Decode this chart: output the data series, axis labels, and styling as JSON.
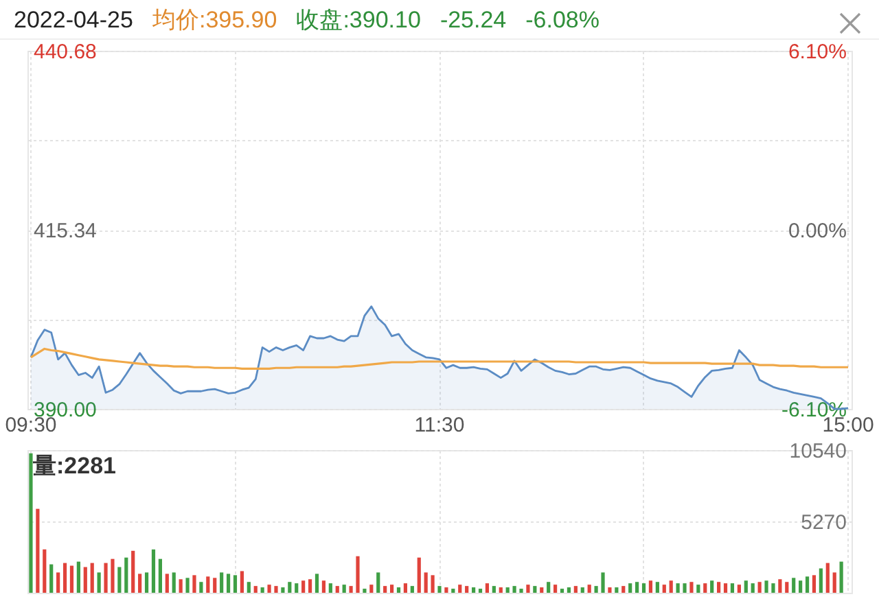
{
  "chart_data": [
    {
      "type": "area",
      "title": "2022-04-25",
      "annotations": [
        "均价:395.90",
        "收盘:390.10",
        "-25.24",
        "-6.08%"
      ],
      "categories": [
        "09:30",
        null,
        null,
        null,
        null,
        null,
        null,
        null,
        null,
        null,
        null,
        null,
        null,
        null,
        null,
        null,
        null,
        null,
        null,
        null,
        null,
        null,
        null,
        null,
        null,
        null,
        null,
        null,
        null,
        null,
        null,
        null,
        null,
        null,
        null,
        null,
        null,
        null,
        null,
        null,
        null,
        null,
        null,
        null,
        null,
        null,
        null,
        null,
        null,
        null,
        null,
        null,
        null,
        null,
        null,
        null,
        null,
        null,
        null,
        null,
        "11:30",
        null,
        null,
        null,
        null,
        null,
        null,
        null,
        null,
        null,
        null,
        null,
        null,
        null,
        null,
        null,
        null,
        null,
        null,
        null,
        null,
        null,
        null,
        null,
        null,
        null,
        null,
        null,
        null,
        null,
        null,
        null,
        null,
        null,
        null,
        null,
        null,
        null,
        null,
        null,
        null,
        null,
        null,
        null,
        null,
        null,
        null,
        null,
        null,
        null,
        null,
        null,
        null,
        null,
        null,
        null,
        null,
        null,
        null,
        null,
        "15:00"
      ],
      "series": [
        {
          "type": "area",
          "color": "#5b8cc4",
          "values": [
            397.3,
            399.7,
            401.2,
            400.8,
            397.0,
            397.9,
            396.2,
            394.8,
            395.1,
            394.4,
            396.0,
            392.3,
            392.7,
            393.5,
            394.9,
            396.4,
            397.9,
            396.5,
            395.4,
            394.5,
            393.6,
            392.6,
            392.2,
            392.5,
            392.5,
            392.5,
            392.7,
            392.8,
            392.5,
            392.2,
            392.3,
            392.7,
            393.0,
            394.2,
            398.7,
            398.1,
            398.7,
            398.3,
            398.7,
            399.0,
            398.3,
            400.3,
            400.0,
            400.0,
            400.3,
            399.8,
            399.6,
            400.3,
            400.3,
            403.2,
            404.5,
            402.8,
            401.9,
            400.3,
            400.6,
            399.2,
            398.3,
            397.8,
            397.3,
            397.2,
            397.0,
            395.8,
            396.2,
            395.8,
            395.8,
            395.9,
            395.7,
            395.6,
            395.0,
            394.4,
            395.0,
            396.8,
            395.4,
            396.2,
            397.0,
            396.5,
            395.9,
            395.4,
            395.2,
            394.9,
            395.0,
            395.5,
            396.0,
            396.0,
            395.6,
            395.5,
            395.7,
            395.9,
            395.8,
            395.3,
            394.8,
            394.3,
            394.0,
            393.8,
            393.6,
            393.1,
            392.4,
            391.7,
            393.3,
            394.5,
            395.4,
            395.5,
            395.7,
            395.8,
            398.3,
            397.3,
            396.2,
            394.1,
            393.6,
            393.1,
            392.8,
            392.6,
            392.3,
            392.1,
            391.9,
            391.7,
            391.5,
            390.8,
            390.0,
            390.0,
            390.1
          ]
        },
        {
          "type": "line",
          "color": "#f0a848",
          "values": [
            397.3,
            397.9,
            398.5,
            398.3,
            398.2,
            398.0,
            397.8,
            397.6,
            397.4,
            397.2,
            397.0,
            396.9,
            396.8,
            396.7,
            396.6,
            396.5,
            396.4,
            396.3,
            396.2,
            396.1,
            396.1,
            396.0,
            396.0,
            396.0,
            395.9,
            395.9,
            395.9,
            395.8,
            395.8,
            395.8,
            395.8,
            395.7,
            395.7,
            395.7,
            395.7,
            395.7,
            395.8,
            395.8,
            395.8,
            395.9,
            395.9,
            395.9,
            395.9,
            395.9,
            395.9,
            395.9,
            396.0,
            396.0,
            396.1,
            396.2,
            396.3,
            396.4,
            396.5,
            396.6,
            396.6,
            396.6,
            396.6,
            396.7,
            396.7,
            396.7,
            396.7,
            396.7,
            396.7,
            396.7,
            396.7,
            396.7,
            396.7,
            396.7,
            396.7,
            396.7,
            396.7,
            396.7,
            396.7,
            396.7,
            396.7,
            396.7,
            396.7,
            396.7,
            396.7,
            396.7,
            396.6,
            396.6,
            396.6,
            396.6,
            396.6,
            396.6,
            396.6,
            396.6,
            396.6,
            396.6,
            396.6,
            396.5,
            396.5,
            396.5,
            396.5,
            396.5,
            396.5,
            396.5,
            396.5,
            396.5,
            396.4,
            396.4,
            396.4,
            396.4,
            396.4,
            396.4,
            396.4,
            396.2,
            396.2,
            396.2,
            396.1,
            396.1,
            396.1,
            396.0,
            396.0,
            396.0,
            395.9,
            395.9,
            395.9,
            395.9,
            395.9
          ]
        }
      ],
      "ylim": [
        390,
        440.68
      ],
      "yticks": [
        {
          "value": 390,
          "label": "390.00"
        },
        {
          "value": 402.67,
          "label": null
        },
        {
          "value": 415.34,
          "label": "415.34"
        },
        {
          "value": 428.01,
          "label": null
        },
        {
          "value": 440.68,
          "label": "440.68"
        }
      ],
      "y2lim": [
        -6.1,
        6.1
      ],
      "y2ticks": [
        {
          "value": -6.1,
          "label": "-6.10%"
        },
        {
          "value": 0,
          "label": "0.00%"
        },
        {
          "value": 6.1,
          "label": "6.10%"
        }
      ],
      "grid": true
    },
    {
      "type": "bar",
      "annotations": [
        "量:2281"
      ],
      "categories": [
        null,
        null,
        null,
        null,
        null,
        null,
        null,
        null,
        null,
        null,
        null,
        null,
        null,
        null,
        null,
        null,
        null,
        null,
        null,
        null,
        null,
        null,
        null,
        null,
        null,
        null,
        null,
        null,
        null,
        null,
        null,
        null,
        null,
        null,
        null,
        null,
        null,
        null,
        null,
        null,
        null,
        null,
        null,
        null,
        null,
        null,
        null,
        null,
        null,
        null,
        null,
        null,
        null,
        null,
        null,
        null,
        null,
        null,
        null,
        null,
        null,
        null,
        null,
        null,
        null,
        null,
        null,
        null,
        null,
        null,
        null,
        null,
        null,
        null,
        null,
        null,
        null,
        null,
        null,
        null,
        null,
        null,
        null,
        null,
        null,
        null,
        null,
        null,
        null,
        null,
        null,
        null,
        null,
        null,
        null,
        null,
        null,
        null,
        null,
        null,
        null,
        null,
        null,
        null,
        null,
        null,
        null,
        null,
        null,
        null,
        null,
        null,
        null,
        null,
        null,
        null,
        null,
        null,
        null,
        null,
        null
      ],
      "values": [
        10300,
        6200,
        3200,
        2100,
        1500,
        2200,
        2000,
        2300,
        1900,
        2200,
        1500,
        2200,
        2500,
        1900,
        2600,
        3100,
        1400,
        1500,
        3200,
        2500,
        1400,
        1500,
        1000,
        1100,
        1300,
        800,
        1200,
        1100,
        1500,
        1400,
        1300,
        1600,
        800,
        500,
        400,
        600,
        500,
        400,
        800,
        700,
        900,
        1000,
        1400,
        900,
        700,
        500,
        600,
        500,
        2700,
        300,
        600,
        1500,
        500,
        600,
        400,
        700,
        500,
        2600,
        1500,
        1300,
        500,
        400,
        300,
        600,
        500,
        400,
        300,
        700,
        500,
        400,
        400,
        500,
        300,
        600,
        500,
        400,
        800,
        600,
        300,
        400,
        500,
        400,
        600,
        500,
        1500,
        400,
        400,
        500,
        700,
        800,
        700,
        900,
        800,
        600,
        900,
        700,
        700,
        800,
        600,
        700,
        900,
        800,
        700,
        700,
        600,
        900,
        700,
        800,
        900,
        700,
        1000,
        800,
        1100,
        900,
        1200,
        1300,
        1800,
        2200,
        1500,
        2300,
        null
      ],
      "colors": [
        "#3f9f45",
        "#e0433b",
        "#e0433b",
        "#3f9f45",
        "#e0433b",
        "#e0433b",
        "#e0433b",
        "#3f9f45",
        "#e0433b",
        "#e0433b",
        "#3f9f45",
        "#e0433b",
        "#e0433b",
        "#3f9f45",
        "#3f9f45",
        "#e0433b",
        "#e0433b",
        "#3f9f45",
        "#3f9f45",
        "#3f9f45",
        "#e0433b",
        "#3f9f45",
        "#e0433b",
        "#3f9f45",
        "#e0433b",
        "#3f9f45",
        "#e0433b",
        "#e0433b",
        "#3f9f45",
        "#3f9f45",
        "#3f9f45",
        "#e0433b",
        "#3f9f45",
        "#e0433b",
        "#3f9f45",
        "#e0433b",
        "#e0433b",
        "#3f9f45",
        "#3f9f45",
        "#3f9f45",
        "#e0433b",
        "#e0433b",
        "#3f9f45",
        "#e0433b",
        "#3f9f45",
        "#e0433b",
        "#3f9f45",
        "#e0433b",
        "#e0433b",
        "#3f9f45",
        "#e0433b",
        "#3f9f45",
        "#e0433b",
        "#e0433b",
        "#3f9f45",
        "#e0433b",
        "#3f9f45",
        "#e0433b",
        "#e0433b",
        "#e0433b",
        "#3f9f45",
        "#e0433b",
        "#3f9f45",
        "#e0433b",
        "#e0433b",
        "#3f9f45",
        "#3f9f45",
        "#e0433b",
        "#3f9f45",
        "#e0433b",
        "#3f9f45",
        "#3f9f45",
        "#3f9f45",
        "#e0433b",
        "#3f9f45",
        "#e0433b",
        "#3f9f45",
        "#e0433b",
        "#3f9f45",
        "#3f9f45",
        "#e0433b",
        "#3f9f45",
        "#e0433b",
        "#3f9f45",
        "#3f9f45",
        "#e0433b",
        "#3f9f45",
        "#e0433b",
        "#3f9f45",
        "#3f9f45",
        "#3f9f45",
        "#e0433b",
        "#3f9f45",
        "#e0433b",
        "#e0433b",
        "#3f9f45",
        "#3f9f45",
        "#e0433b",
        "#3f9f45",
        "#e0433b",
        "#3f9f45",
        "#e0433b",
        "#e0433b",
        "#3f9f45",
        "#e0433b",
        "#3f9f45",
        "#3f9f45",
        "#e0433b",
        "#3f9f45",
        "#3f9f45",
        "#e0433b",
        "#e0433b",
        "#3f9f45",
        "#3f9f45",
        "#3f9f45",
        "#e0433b",
        "#3f9f45",
        "#e0433b",
        "#e0433b",
        "#3f9f45",
        null
      ],
      "ylim": [
        0,
        10540
      ],
      "yticks": [
        5270,
        10540
      ],
      "grid": true
    }
  ]
}
